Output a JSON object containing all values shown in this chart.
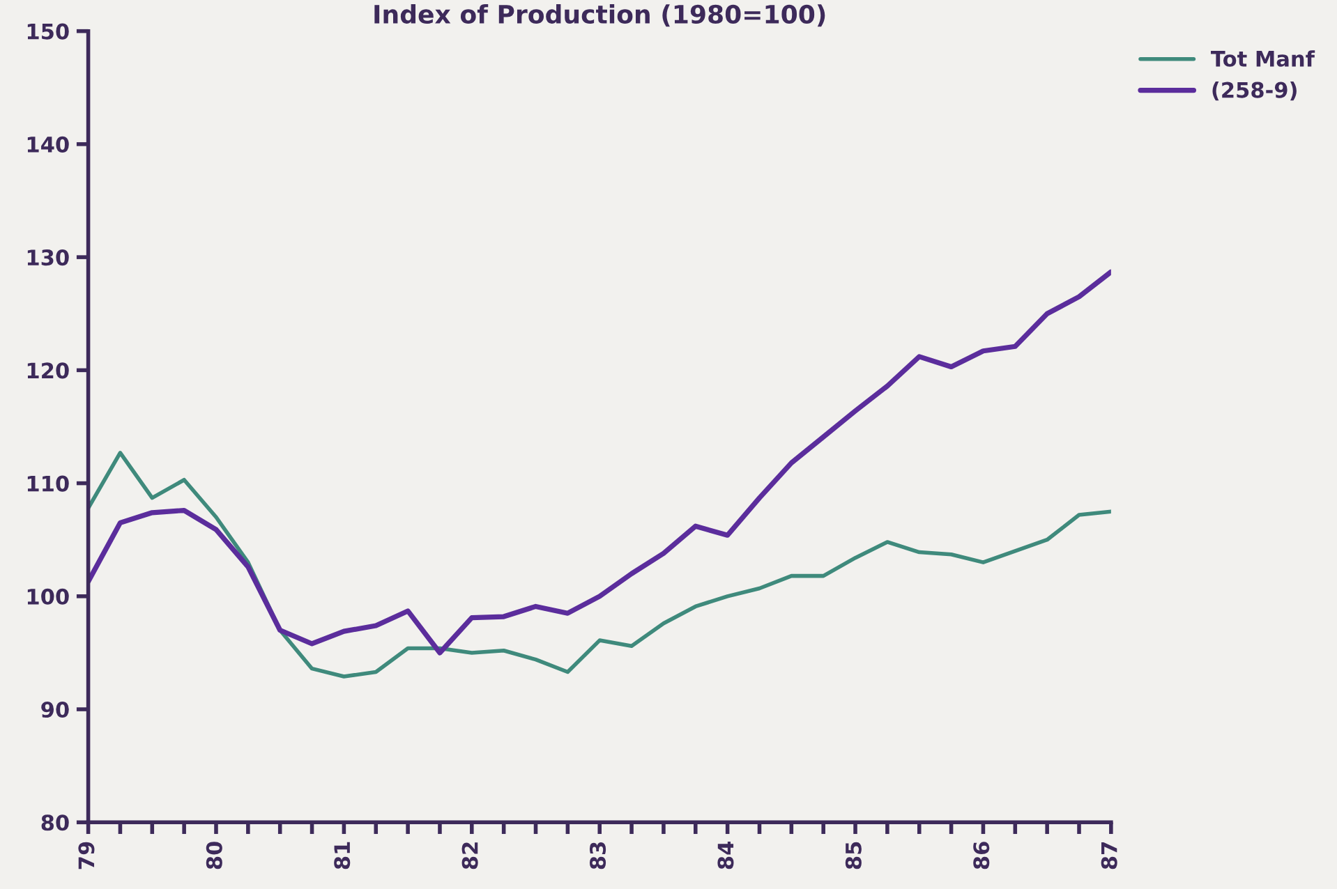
{
  "chart_data": {
    "type": "line",
    "title": "Index of Production (1980=100)",
    "x": [
      79,
      79.25,
      79.5,
      79.75,
      80,
      80.25,
      80.5,
      80.75,
      81,
      81.25,
      81.5,
      81.75,
      82,
      82.25,
      82.5,
      82.75,
      83,
      83.25,
      83.5,
      83.75,
      84,
      84.25,
      84.5,
      84.75,
      85,
      85.25,
      85.5,
      85.75,
      86,
      86.25,
      86.5,
      86.75,
      87
    ],
    "series": [
      {
        "name": "Tot Manf",
        "color": "#3f8a7c",
        "values": [
          107.8,
          112.7,
          108.7,
          110.3,
          107,
          103,
          97,
          93.6,
          92.9,
          93.3,
          95.4,
          95.4,
          95,
          95.2,
          94.4,
          93.3,
          96.1,
          95.6,
          97.6,
          99.1,
          100,
          100.7,
          101.8,
          101.8,
          103.4,
          104.8,
          103.9,
          103.7,
          103,
          104,
          105,
          107.2,
          107.5
        ]
      },
      {
        "name": "(258-9)",
        "color": "#5b2d9c",
        "values": [
          101.3,
          106.5,
          107.4,
          107.6,
          105.9,
          102.6,
          97,
          95.8,
          96.9,
          97.4,
          98.7,
          95,
          98.1,
          98.2,
          99.1,
          98.5,
          100,
          102,
          103.8,
          106.2,
          105.4,
          108.7,
          111.8,
          114.1,
          116.4,
          118.6,
          121.2,
          120.3,
          121.7,
          122.1,
          125,
          126.5,
          128.7
        ]
      }
    ],
    "xlim": [
      79,
      87
    ],
    "xticks": [
      79,
      {
        "value": 79.25,
        "label": null
      },
      {
        "value": 79.5,
        "label": null
      },
      {
        "value": 79.75,
        "label": null
      },
      80,
      {
        "value": 80.25,
        "label": null
      },
      {
        "value": 80.5,
        "label": null
      },
      {
        "value": 80.75,
        "label": null
      },
      81,
      {
        "value": 81.25,
        "label": null
      },
      {
        "value": 81.5,
        "label": null
      },
      {
        "value": 81.75,
        "label": null
      },
      82,
      {
        "value": 82.25,
        "label": null
      },
      {
        "value": 82.5,
        "label": null
      },
      {
        "value": 82.75,
        "label": null
      },
      83,
      {
        "value": 83.25,
        "label": null
      },
      {
        "value": 83.5,
        "label": null
      },
      {
        "value": 83.75,
        "label": null
      },
      84,
      {
        "value": 84.25,
        "label": null
      },
      {
        "value": 84.5,
        "label": null
      },
      {
        "value": 84.75,
        "label": null
      },
      85,
      {
        "value": 85.25,
        "label": null
      },
      {
        "value": 85.5,
        "label": null
      },
      {
        "value": 85.75,
        "label": null
      },
      86,
      {
        "value": 86.25,
        "label": null
      },
      {
        "value": 86.5,
        "label": null
      },
      {
        "value": 86.75,
        "label": null
      },
      87
    ],
    "ylim": [
      80,
      150
    ],
    "yticks": [
      80,
      90,
      100,
      110,
      120,
      130,
      140,
      150
    ],
    "grid": false,
    "legend": "top right",
    "marker": "none",
    "line_style": "solid"
  }
}
